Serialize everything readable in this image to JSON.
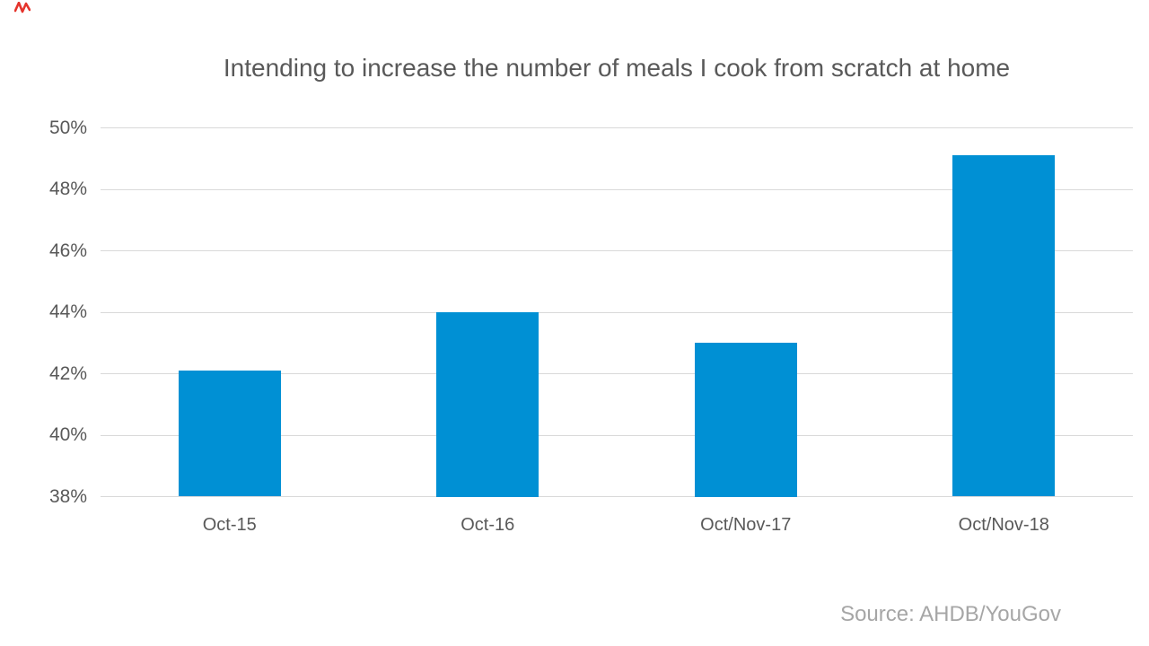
{
  "title": {
    "text": "Intending to increase the number of meals I cook from scratch at home"
  },
  "source": {
    "text": "Source: AHDB/YouGov"
  },
  "decorations": {
    "red_mark_color": "#e5342c"
  },
  "chart_data": {
    "type": "bar",
    "title": "Intending to increase the number of meals I cook from scratch at home",
    "categories": [
      "Oct-15",
      "Oct-16",
      "Oct/Nov-17",
      "Oct/Nov-18"
    ],
    "values": [
      42.1,
      44.0,
      43.0,
      49.1
    ],
    "xlabel": "",
    "ylabel": "",
    "ylim": [
      38,
      50
    ],
    "ytick_step": 2,
    "ytick_labels": [
      "38%",
      "40%",
      "42%",
      "44%",
      "46%",
      "48%",
      "50%"
    ],
    "grid": true,
    "legend": false,
    "annotations": [
      "Source: AHDB/YouGov"
    ],
    "colors": {
      "bar": "#0090d4",
      "gridline": "#d9d9d9",
      "text": "#595959",
      "source_text": "#a6a6a6"
    }
  }
}
